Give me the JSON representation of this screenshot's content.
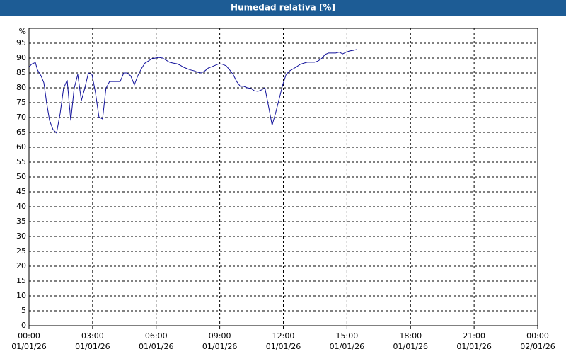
{
  "chart_data": {
    "type": "line",
    "title": "Humedad relativa [%]",
    "y_unit": "%",
    "x": [
      0,
      0.13,
      0.3,
      0.4,
      0.57,
      0.7,
      0.83,
      0.97,
      1.13,
      1.3,
      1.47,
      1.63,
      1.8,
      1.97,
      2.13,
      2.3,
      2.47,
      2.63,
      2.8,
      2.97,
      3.13,
      3.3,
      3.47,
      3.63,
      3.8,
      3.97,
      4.13,
      4.3,
      4.47,
      4.63,
      4.8,
      4.97,
      5.13,
      5.3,
      5.47,
      5.63,
      5.8,
      5.97,
      6.13,
      6.3,
      6.47,
      6.63,
      6.8,
      6.97,
      7.13,
      7.3,
      7.47,
      7.63,
      7.8,
      7.97,
      8.13,
      8.3,
      8.47,
      8.63,
      8.8,
      8.97,
      9.13,
      9.3,
      9.47,
      9.63,
      9.8,
      9.97,
      10.13,
      10.3,
      10.47,
      10.63,
      10.8,
      10.97,
      11.13,
      11.3,
      11.47,
      11.63,
      11.8,
      11.97,
      12.13,
      12.3,
      12.47,
      12.63,
      12.8,
      12.97,
      13.13,
      13.3,
      13.47,
      13.63,
      13.8,
      13.97,
      14.13,
      14.3,
      14.47,
      14.63,
      14.8,
      14.97,
      15.13,
      15.3,
      15.47
    ],
    "series": [
      {
        "name": "Humedad relativa",
        "color": "#10109a",
        "values": [
          87,
          88,
          88.5,
          86,
          84,
          81.7,
          75,
          69,
          66,
          64.8,
          71.4,
          79.8,
          82.6,
          69,
          79.8,
          84.5,
          75.7,
          79.8,
          85,
          84.5,
          78.6,
          70.2,
          69.5,
          79.8,
          82.1,
          82.1,
          82.1,
          82.1,
          85,
          85,
          84,
          81,
          84,
          86.4,
          88.3,
          89,
          89.8,
          90,
          90.2,
          90,
          89.3,
          88.6,
          88.3,
          88.1,
          87.6,
          86.9,
          86.4,
          86,
          85.7,
          85.2,
          85,
          85.7,
          86.7,
          87.1,
          87.6,
          88.1,
          87.9,
          87.4,
          86,
          84.5,
          82.1,
          80.5,
          80.5,
          80,
          79.8,
          79,
          78.8,
          79.3,
          80,
          73.8,
          67.4,
          71.4,
          76.2,
          81,
          84.5,
          85.7,
          86.4,
          87.1,
          87.9,
          88.3,
          88.6,
          88.6,
          88.6,
          89,
          89.8,
          91.2,
          91.7,
          91.7,
          91.7,
          92,
          91.4,
          92,
          92.4,
          92.6,
          92.9
        ]
      }
    ],
    "xlim": [
      0,
      24
    ],
    "xticks": [
      {
        "value": 0,
        "label": "00:00"
      },
      {
        "value": 3,
        "label": "03:00"
      },
      {
        "value": 6,
        "label": "06:00"
      },
      {
        "value": 9,
        "label": "09:00"
      },
      {
        "value": 12,
        "label": "12:00"
      },
      {
        "value": 15,
        "label": "15:00"
      },
      {
        "value": 18,
        "label": "18:00"
      },
      {
        "value": 21,
        "label": "21:00"
      },
      {
        "value": 24,
        "label": "00:00"
      }
    ],
    "xtick_dates": [
      "01/01/26",
      "01/01/26",
      "01/01/26",
      "01/01/26",
      "01/01/26",
      "01/01/26",
      "01/01/26",
      "01/01/26",
      "02/01/26"
    ],
    "ylim": [
      0,
      100
    ],
    "yticks": [
      0,
      5,
      10,
      15,
      20,
      25,
      30,
      35,
      40,
      45,
      50,
      55,
      60,
      65,
      70,
      75,
      80,
      85,
      90,
      95
    ],
    "grid": true
  }
}
